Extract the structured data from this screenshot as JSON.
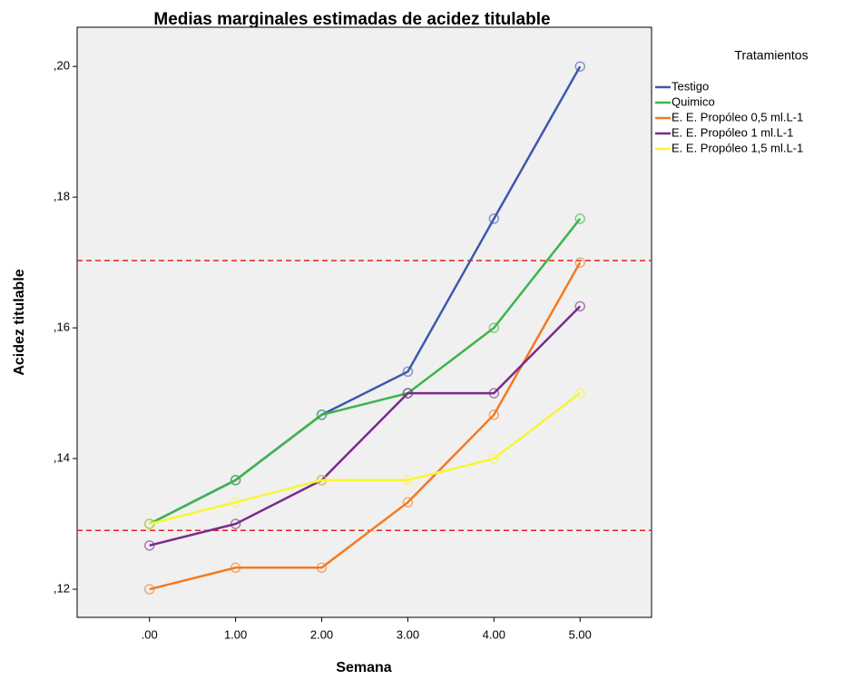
{
  "chart_data": {
    "type": "line",
    "title": "Medias marginales estimadas de acidez titulable",
    "x_label": "Semana",
    "y_label": "Acidez titulable",
    "legend_title": "Tratamientos",
    "legend_position": "right",
    "x": [
      0,
      1,
      2,
      3,
      4,
      5
    ],
    "xlim": [
      -0.84,
      5.83
    ],
    "xticks": [
      {
        "value": 0,
        "label": ".00"
      },
      {
        "value": 1,
        "label": "1.00"
      },
      {
        "value": 2,
        "label": "2.00"
      },
      {
        "value": 3,
        "label": "3.00"
      },
      {
        "value": 4,
        "label": "4.00"
      },
      {
        "value": 5,
        "label": "5.00"
      }
    ],
    "ylim": [
      0.1157,
      0.206
    ],
    "yticks": [
      {
        "value": 0.12,
        "label": ",12"
      },
      {
        "value": 0.14,
        "label": ",14"
      },
      {
        "value": 0.16,
        "label": ",16"
      },
      {
        "value": 0.18,
        "label": ",18"
      },
      {
        "value": 0.2,
        "label": ",20"
      }
    ],
    "reference_lines": [
      0.1703,
      0.129
    ],
    "reference_color": "#e8201c",
    "background": "#f0f0f0",
    "series": [
      {
        "name": "Testigo",
        "color": "#3e58ac",
        "values": [
          0.13,
          0.1367,
          0.1467,
          0.1533,
          0.1767,
          0.2
        ]
      },
      {
        "name": "Quimico",
        "color": "#3bb54a",
        "values": [
          0.13,
          0.1367,
          0.1467,
          0.15,
          0.16,
          0.1767
        ]
      },
      {
        "name": "E. E. Propóleo  0,5 ml.L-1",
        "color": "#f47a20",
        "values": [
          0.12,
          0.1233,
          0.1233,
          0.1333,
          0.1467,
          0.17
        ]
      },
      {
        "name": "E. E. Propóleo 1 ml.L-1",
        "color": "#7b2a8c",
        "values": [
          0.1267,
          0.13,
          0.1367,
          0.15,
          0.15,
          0.1633
        ]
      },
      {
        "name": "E. E. Propóleo 1,5 ml.L-1",
        "color": "#f8f535",
        "values": [
          0.13,
          0.1333,
          0.1367,
          0.1367,
          0.14,
          0.15
        ]
      }
    ]
  }
}
